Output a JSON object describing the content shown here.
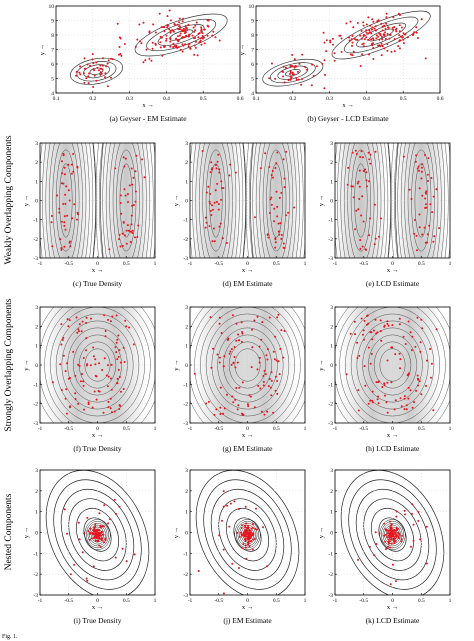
{
  "figure": {
    "caption_partial": "Fig. 1.",
    "row_labels": [
      "Weakly Overlapping Components",
      "Strongly Overlapping Components",
      "Nested Components"
    ],
    "x_axis_label": "x →",
    "y_axis_label": "y →"
  },
  "chart_data": [
    {
      "id": "a",
      "type": "scatter",
      "caption": "(a) Geyser - EM Estimate",
      "xlim": [
        0.1,
        0.6
      ],
      "ylim": [
        4,
        10
      ],
      "xticks": [
        "0.1",
        "0.2",
        "0.3",
        "0.4",
        "0.5",
        "0.6"
      ],
      "yticks": [
        "4",
        "5",
        "6",
        "7",
        "8",
        "9",
        "10"
      ],
      "grid": true,
      "density": "geyser",
      "components": [
        {
          "mx": 0.21,
          "my": 5.5,
          "sx": 0.03,
          "sy": 0.65,
          "r": 0.3
        },
        {
          "mx": 0.44,
          "my": 8.0,
          "sx": 0.055,
          "sy": 0.75,
          "r": 0.55
        }
      ]
    },
    {
      "id": "b",
      "type": "scatter",
      "caption": "(b) Geyser - LCD Estimate",
      "xlim": [
        0.1,
        0.6
      ],
      "ylim": [
        4,
        10
      ],
      "xticks": [
        "0.1",
        "0.2",
        "0.3",
        "0.4",
        "0.5",
        "0.6"
      ],
      "yticks": [
        "4",
        "5",
        "6",
        "7",
        "8",
        "9",
        "10"
      ],
      "grid": true,
      "density": "geyser",
      "components": [
        {
          "mx": 0.2,
          "my": 5.4,
          "sx": 0.035,
          "sy": 0.6,
          "r": 0.4
        },
        {
          "mx": 0.44,
          "my": 8.0,
          "sx": 0.06,
          "sy": 0.7,
          "r": 0.65
        }
      ]
    },
    {
      "id": "c",
      "type": "scatter",
      "caption": "(c) True Density",
      "xlim": [
        -1,
        1
      ],
      "ylim": [
        -3,
        3
      ],
      "xticks": [
        "-1",
        "-0.5",
        "0",
        "0.5",
        "1"
      ],
      "yticks": [
        "-3",
        "-2",
        "-1",
        "0",
        "1",
        "2",
        "3"
      ],
      "grid": true,
      "density": "weak-true"
    },
    {
      "id": "d",
      "type": "scatter",
      "caption": "(d) EM Estimate",
      "xlim": [
        -1,
        1
      ],
      "ylim": [
        -3,
        3
      ],
      "xticks": [
        "-1",
        "-0.5",
        "0",
        "0.5",
        "1"
      ],
      "yticks": [
        "-3",
        "-2",
        "-1",
        "0",
        "1",
        "2",
        "3"
      ],
      "grid": true,
      "density": "weak-em"
    },
    {
      "id": "e",
      "type": "scatter",
      "caption": "(e) LCD Estimate",
      "xlim": [
        -1,
        1
      ],
      "ylim": [
        -3,
        3
      ],
      "xticks": [
        "-1",
        "-0.5",
        "0",
        "0.5",
        "1"
      ],
      "yticks": [
        "-3",
        "-2",
        "-1",
        "0",
        "1",
        "2",
        "3"
      ],
      "grid": true,
      "density": "weak-lcd"
    },
    {
      "id": "f",
      "type": "scatter",
      "caption": "(f) True Density",
      "xlim": [
        -1,
        1
      ],
      "ylim": [
        -3,
        3
      ],
      "xticks": [
        "-1",
        "-0.5",
        "0",
        "0.5",
        "1"
      ],
      "yticks": [
        "-3",
        "-2",
        "-1",
        "0",
        "1",
        "2",
        "3"
      ],
      "grid": true,
      "density": "strong-true"
    },
    {
      "id": "g",
      "type": "scatter",
      "caption": "(g) EM Estimate",
      "xlim": [
        -1,
        1
      ],
      "ylim": [
        -3,
        3
      ],
      "xticks": [
        "-1",
        "-0.5",
        "0",
        "0.5",
        "1"
      ],
      "yticks": [
        "-3",
        "-2",
        "-1",
        "0",
        "1",
        "2",
        "3"
      ],
      "grid": true,
      "density": "strong-em"
    },
    {
      "id": "h",
      "type": "scatter",
      "caption": "(h) LCD Estimate",
      "xlim": [
        -1,
        1
      ],
      "ylim": [
        -3,
        3
      ],
      "xticks": [
        "-1",
        "-0.5",
        "0",
        "0.5",
        "1"
      ],
      "yticks": [
        "-3",
        "-2",
        "-1",
        "0",
        "1",
        "2",
        "3"
      ],
      "grid": true,
      "density": "strong-lcd"
    },
    {
      "id": "i",
      "type": "scatter",
      "caption": "(i) True Density",
      "xlim": [
        -1,
        1
      ],
      "ylim": [
        -3,
        3
      ],
      "xticks": [
        "-1",
        "-0.5",
        "0",
        "0.5",
        "1"
      ],
      "yticks": [
        "-3",
        "-2",
        "-1",
        "0",
        "1",
        "2",
        "3"
      ],
      "grid": true,
      "density": "nested"
    },
    {
      "id": "j",
      "type": "scatter",
      "caption": "(j) EM Estimate",
      "xlim": [
        -1,
        1
      ],
      "ylim": [
        -3,
        3
      ],
      "xticks": [
        "-1",
        "-0.5",
        "0",
        "0.5",
        "1"
      ],
      "yticks": [
        "-3",
        "-2",
        "-1",
        "0",
        "1",
        "2",
        "3"
      ],
      "grid": true,
      "density": "nested"
    },
    {
      "id": "k",
      "type": "scatter",
      "caption": "(k) LCD Estimate",
      "xlim": [
        -1,
        1
      ],
      "ylim": [
        -3,
        3
      ],
      "xticks": [
        "-1",
        "-0.5",
        "0",
        "0.5",
        "1"
      ],
      "yticks": [
        "-3",
        "-2",
        "-1",
        "0",
        "1",
        "2",
        "3"
      ],
      "grid": true,
      "density": "nested"
    }
  ],
  "colors": {
    "points": "#e8141e",
    "contour": "#222222",
    "shade": "#9a9a9a",
    "grid": "#cccccc"
  }
}
